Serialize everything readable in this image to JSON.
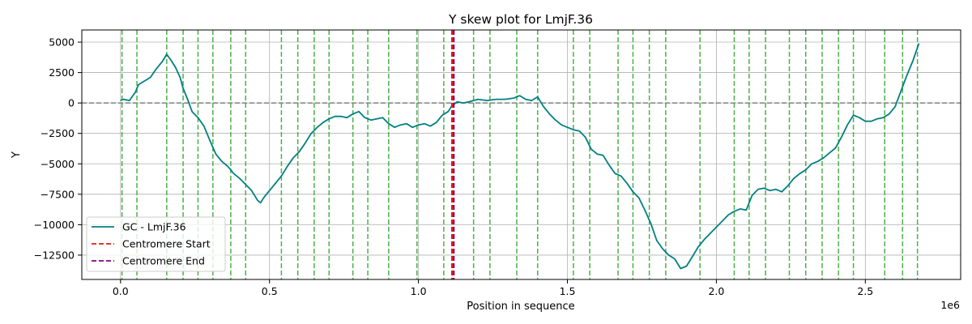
{
  "chart_data": {
    "type": "line",
    "title": "Y skew plot for LmjF.36",
    "xlabel": "Position in sequence",
    "ylabel": "Y",
    "x_offset_label": "1e6",
    "xlim": [
      -130000,
      2820000
    ],
    "ylim": [
      -14500,
      6000
    ],
    "grid": true,
    "legend_position": "lower-left",
    "x_ticks": [
      {
        "value": 0,
        "label": "0.0"
      },
      {
        "value": 500000,
        "label": "0.5"
      },
      {
        "value": 1000000,
        "label": "1.0"
      },
      {
        "value": 1500000,
        "label": "1.5"
      },
      {
        "value": 2000000,
        "label": "2.0"
      },
      {
        "value": 2500000,
        "label": "2.5"
      }
    ],
    "y_ticks": [
      {
        "value": 5000,
        "label": "5000"
      },
      {
        "value": 2500,
        "label": "2500"
      },
      {
        "value": 0,
        "label": "0"
      },
      {
        "value": -2500,
        "label": "−2500"
      },
      {
        "value": -5000,
        "label": "−5000"
      },
      {
        "value": -7500,
        "label": "−7500"
      },
      {
        "value": -10000,
        "label": "−10000"
      },
      {
        "value": -12500,
        "label": "−12500"
      }
    ],
    "series": [
      {
        "name": "GC - LmjF.36",
        "color": "#008080",
        "x": [
          0,
          10000,
          30000,
          50000,
          60000,
          80000,
          100000,
          120000,
          140000,
          155000,
          170000,
          185000,
          200000,
          210000,
          225000,
          240000,
          260000,
          280000,
          300000,
          320000,
          340000,
          360000,
          380000,
          400000,
          420000,
          440000,
          460000,
          470000,
          480000,
          490000,
          500000,
          520000,
          540000,
          560000,
          580000,
          600000,
          620000,
          640000,
          660000,
          680000,
          700000,
          720000,
          740000,
          760000,
          780000,
          800000,
          820000,
          840000,
          860000,
          880000,
          900000,
          920000,
          940000,
          960000,
          980000,
          1000000,
          1020000,
          1040000,
          1060000,
          1080000,
          1100000,
          1110000,
          1120000,
          1130000,
          1150000,
          1170000,
          1200000,
          1230000,
          1260000,
          1290000,
          1320000,
          1340000,
          1360000,
          1380000,
          1400000,
          1420000,
          1440000,
          1460000,
          1480000,
          1500000,
          1520000,
          1540000,
          1560000,
          1580000,
          1600000,
          1620000,
          1640000,
          1660000,
          1680000,
          1700000,
          1720000,
          1740000,
          1760000,
          1780000,
          1800000,
          1820000,
          1840000,
          1860000,
          1880000,
          1900000,
          1920000,
          1940000,
          1960000,
          1980000,
          2000000,
          2020000,
          2040000,
          2060000,
          2080000,
          2100000,
          2120000,
          2140000,
          2160000,
          2180000,
          2200000,
          2220000,
          2240000,
          2260000,
          2280000,
          2300000,
          2320000,
          2340000,
          2360000,
          2380000,
          2400000,
          2420000,
          2440000,
          2460000,
          2480000,
          2500000,
          2520000,
          2540000,
          2560000,
          2580000,
          2600000,
          2620000,
          2640000,
          2660000,
          2680000
        ],
        "values": [
          200,
          300,
          200,
          900,
          1500,
          1800,
          2100,
          2800,
          3400,
          4000,
          3500,
          2900,
          2100,
          1200,
          300,
          -700,
          -1200,
          -1900,
          -3100,
          -4200,
          -4800,
          -5200,
          -5800,
          -6200,
          -6700,
          -7200,
          -8000,
          -8200,
          -7800,
          -7500,
          -7200,
          -6600,
          -6000,
          -5200,
          -4500,
          -4000,
          -3300,
          -2500,
          -2000,
          -1600,
          -1300,
          -1100,
          -1100,
          -1200,
          -900,
          -700,
          -1200,
          -1400,
          -1300,
          -1200,
          -1700,
          -2000,
          -1800,
          -1700,
          -2000,
          -1800,
          -1700,
          -1900,
          -1600,
          -1000,
          -700,
          -300,
          -100,
          100,
          0,
          100,
          300,
          200,
          300,
          300,
          400,
          600,
          300,
          200,
          500,
          -300,
          -900,
          -1400,
          -1800,
          -2000,
          -2200,
          -2300,
          -2800,
          -3800,
          -4200,
          -4300,
          -5100,
          -5800,
          -6000,
          -6600,
          -7300,
          -7800,
          -8800,
          -9900,
          -11300,
          -12000,
          -12500,
          -12800,
          -13600,
          -13400,
          -12600,
          -11800,
          -11200,
          -10700,
          -10200,
          -9700,
          -9200,
          -8900,
          -8700,
          -8800,
          -7600,
          -7100,
          -7000,
          -7200,
          -7100,
          -7300,
          -6800,
          -6200,
          -5800,
          -5500,
          -5000,
          -4800,
          -4500,
          -4100,
          -3700,
          -2800,
          -1800,
          -1000,
          -1200,
          -1500,
          -1500,
          -1300,
          -1200,
          -900,
          -300,
          1000,
          2300,
          3500,
          4900
        ]
      }
    ],
    "reference_lines": {
      "zero_line": {
        "value": 0,
        "color": "#808080"
      },
      "centromere_start": {
        "name": "Centromere Start",
        "value": 1113000,
        "color": "#e41a1c"
      },
      "centromere_end": {
        "name": "Centromere End",
        "value": 1118000,
        "color": "#800080"
      },
      "gene_markers": {
        "color": "#4daf4a",
        "positions": [
          5000,
          55000,
          155000,
          210000,
          260000,
          310000,
          370000,
          420000,
          540000,
          595000,
          650000,
          700000,
          780000,
          830000,
          900000,
          995000,
          1085000,
          1185000,
          1240000,
          1330000,
          1400000,
          1520000,
          1575000,
          1670000,
          1720000,
          1775000,
          1830000,
          1945000,
          2060000,
          2110000,
          2165000,
          2245000,
          2300000,
          2355000,
          2410000,
          2460000,
          2565000,
          2625000,
          2675000
        ]
      }
    },
    "legend": [
      {
        "label": "GC - LmjF.36",
        "color": "#008080",
        "style": "solid"
      },
      {
        "label": "Centromere Start",
        "color": "#e41a1c",
        "style": "dashed"
      },
      {
        "label": "Centromere End",
        "color": "#800080",
        "style": "dashed"
      }
    ]
  }
}
